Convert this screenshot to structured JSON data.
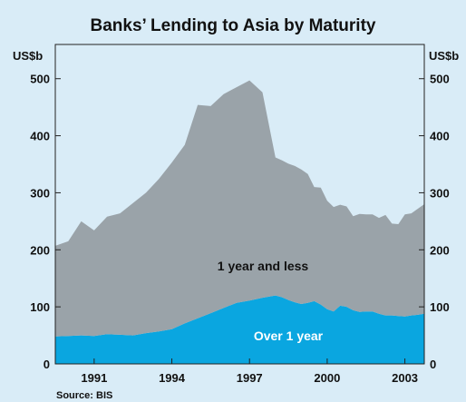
{
  "chart_data": {
    "type": "area",
    "title": "Banks’ Lending to Asia by Maturity",
    "unit_left": "US$b",
    "unit_right": "US$b",
    "source": "Source: BIS",
    "ylim": [
      0,
      560
    ],
    "yticks": [
      0,
      100,
      200,
      300,
      400,
      500
    ],
    "xlim": [
      1989.5,
      2003.75
    ],
    "xticks": [
      1991,
      1994,
      1997,
      2000,
      2003
    ],
    "xtick_labels": [
      "1991",
      "1994",
      "1997",
      "2000",
      "2003"
    ],
    "x": [
      1989.5,
      1990.0,
      1990.5,
      1991.0,
      1991.5,
      1992.0,
      1992.5,
      1993.0,
      1993.5,
      1994.0,
      1994.5,
      1995.0,
      1995.5,
      1996.0,
      1996.5,
      1997.0,
      1997.5,
      1998.0,
      1998.25,
      1998.5,
      1998.75,
      1999.0,
      1999.25,
      1999.5,
      1999.75,
      2000.0,
      2000.25,
      2000.5,
      2000.75,
      2001.0,
      2001.25,
      2001.5,
      2001.75,
      2002.0,
      2002.25,
      2002.5,
      2002.75,
      2003.0,
      2003.25,
      2003.5,
      2003.75
    ],
    "series": [
      {
        "name": "Over 1 year",
        "color": "#0aa6e0",
        "values": [
          48,
          49,
          50,
          49,
          52,
          51,
          50,
          54,
          57,
          61,
          71,
          80,
          89,
          98,
          107,
          111,
          116,
          120,
          117,
          112,
          108,
          105,
          107,
          110,
          104,
          96,
          92,
          102,
          100,
          94,
          91,
          92,
          92,
          88,
          85,
          85,
          84,
          83,
          85,
          86,
          88
        ]
      },
      {
        "name": "1 year and less",
        "color": "#9aa3a9",
        "values": [
          159,
          166,
          200,
          185,
          206,
          213,
          232,
          246,
          267,
          292,
          313,
          374,
          363,
          375,
          378,
          386,
          360,
          242,
          240,
          239,
          239,
          236,
          226,
          200,
          205,
          190,
          183,
          177,
          176,
          165,
          172,
          170,
          170,
          168,
          176,
          161,
          161,
          179,
          179,
          186,
          192
        ]
      }
    ],
    "totals": [
      207,
      215,
      250,
      234,
      258,
      264,
      282,
      300,
      324,
      353,
      384,
      454,
      452,
      473,
      485,
      497,
      476,
      362,
      357,
      351,
      347,
      341,
      333,
      310,
      309,
      286,
      275,
      279,
      276,
      259,
      263,
      262,
      262,
      256,
      261,
      246,
      245,
      262,
      264,
      272,
      280
    ],
    "area_labels": [
      "1 year and less",
      "Over 1 year"
    ],
    "gridlines": false,
    "legend": "none"
  }
}
